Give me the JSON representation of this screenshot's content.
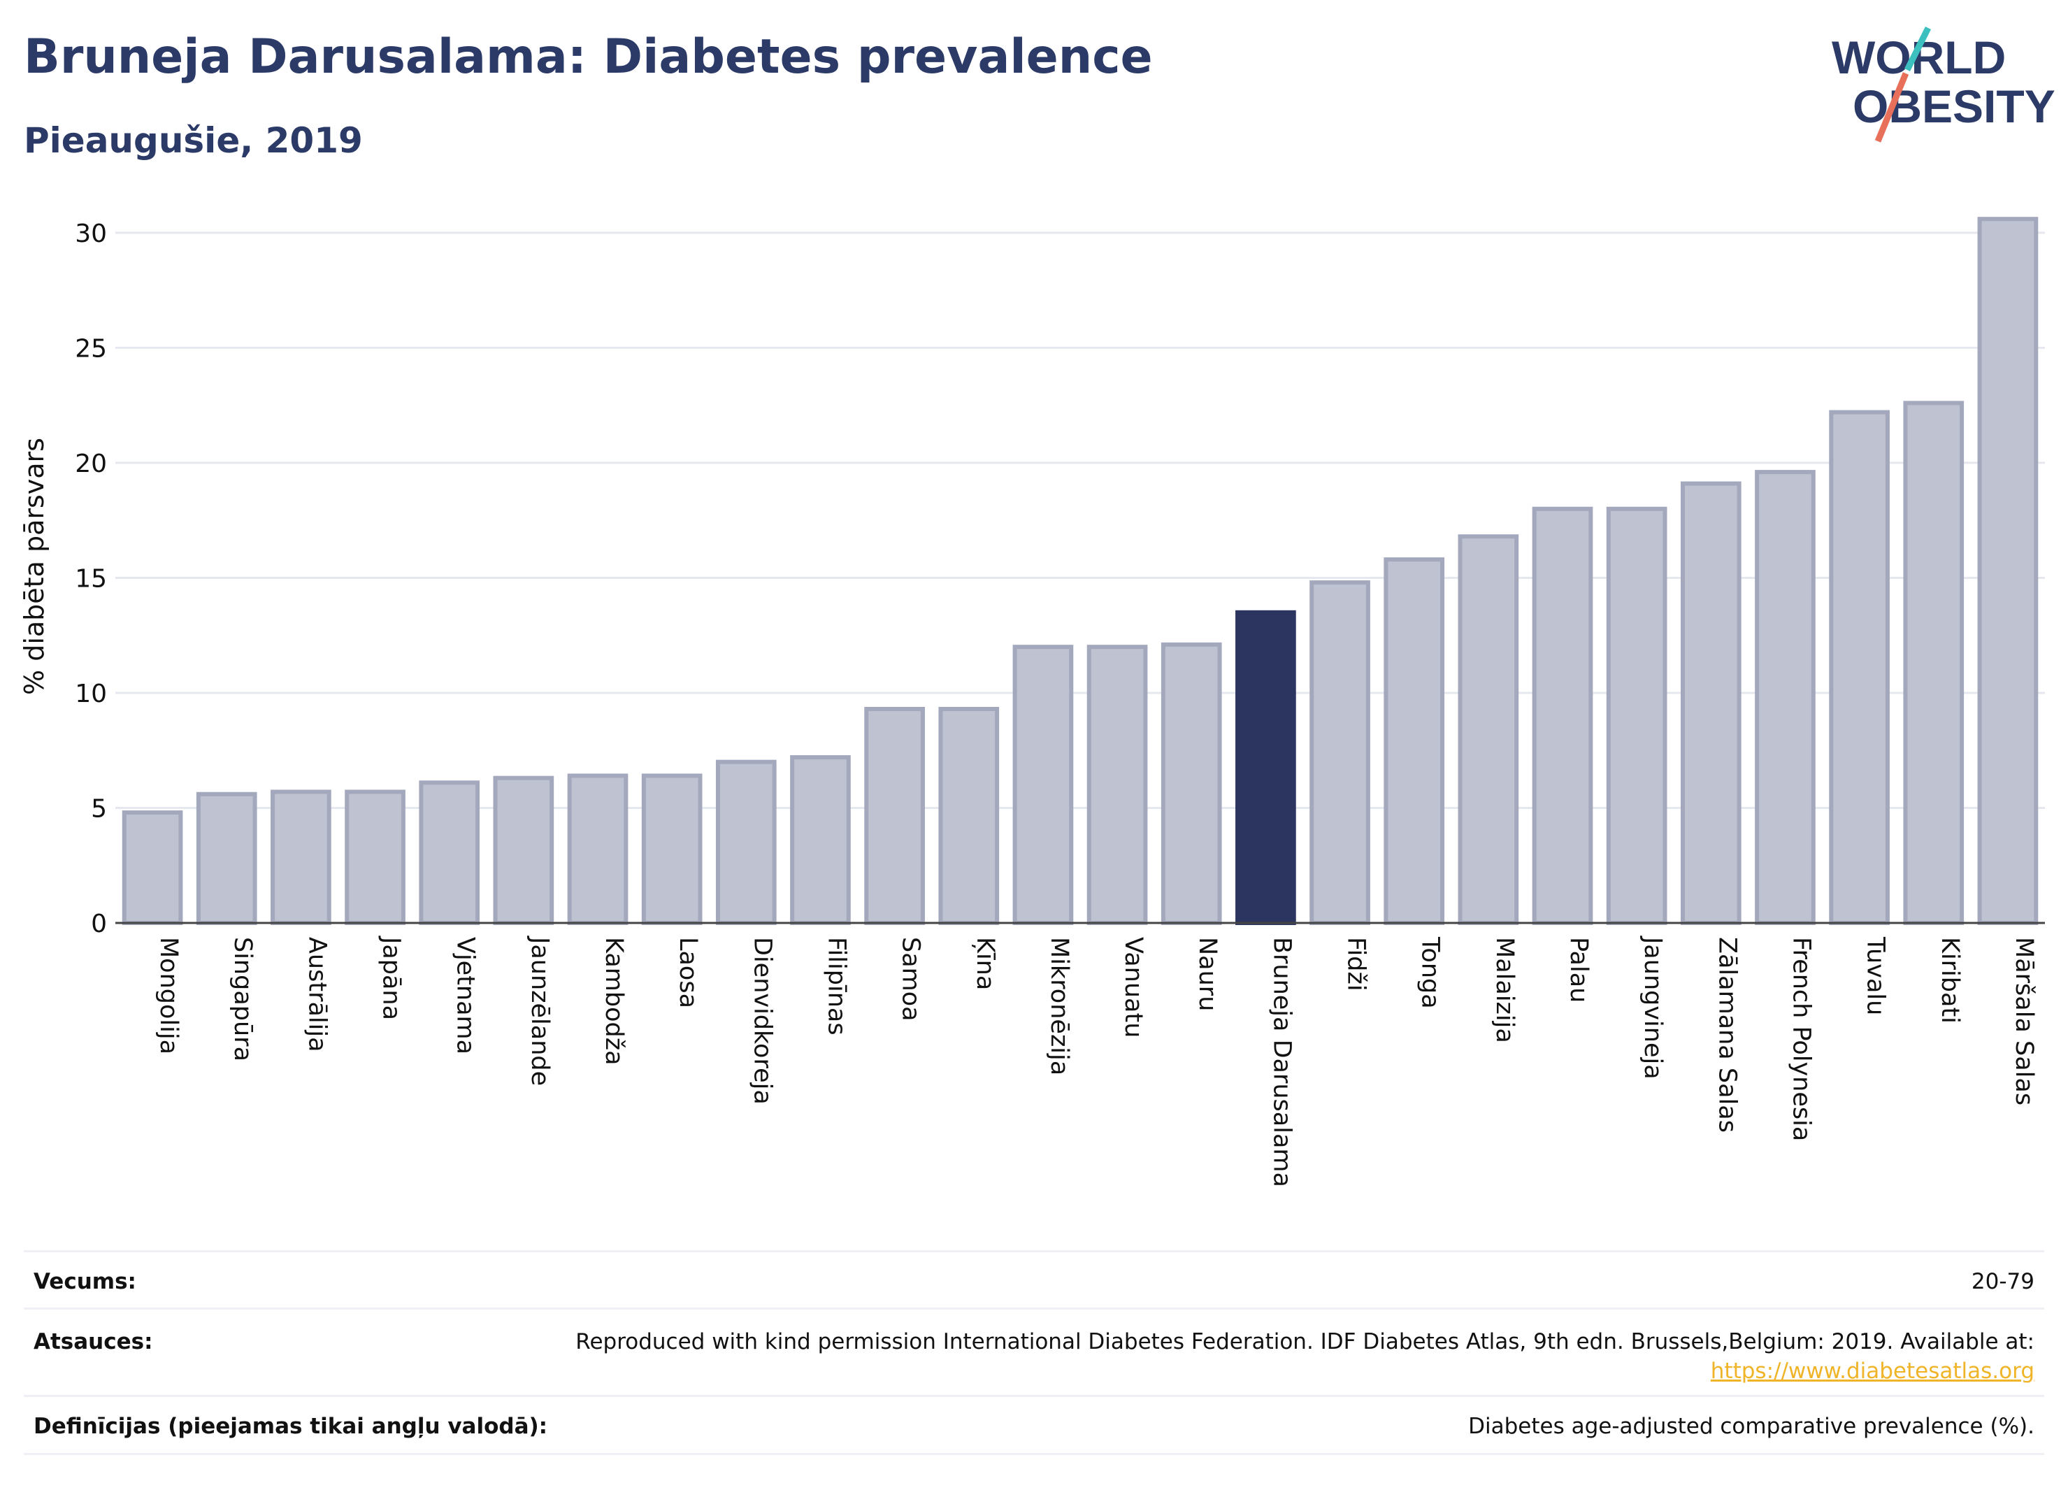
{
  "header": {
    "title": "Bruneja Darusalama: Diabetes prevalence",
    "subtitle": "Pieaugušie, 2019"
  },
  "logo": {
    "line1": "WORLD",
    "line2": "OBESITY",
    "accent_colors": [
      "#3cbfbf",
      "#e8705a"
    ],
    "text_color": "#2b3a67"
  },
  "chart_data": {
    "type": "bar",
    "ylabel": "% diabēta pārsvars",
    "ylim": [
      0,
      31
    ],
    "yticks": [
      0,
      5,
      10,
      15,
      20,
      25,
      30
    ],
    "grid": true,
    "categories": [
      "Mongolija",
      "Singapūra",
      "Austrālija",
      "Japāna",
      "Vjetnama",
      "Jaunzēlande",
      "Kambodža",
      "Laosa",
      "Dienvidkoreja",
      "Filipīnas",
      "Samoa",
      "Ķīna",
      "Mikronēzija",
      "Vanuatu",
      "Nauru",
      "Bruneja Darusalama",
      "Fidži",
      "Tonga",
      "Malaizija",
      "Palau",
      "Jaungvineja",
      "Zālamana Salas",
      "French Polynesia",
      "Tuvalu",
      "Kiribati",
      "Māršala Salas"
    ],
    "values": [
      4.8,
      5.6,
      5.7,
      5.7,
      6.1,
      6.3,
      6.4,
      6.4,
      7.0,
      7.2,
      9.3,
      9.3,
      12.0,
      12.0,
      12.1,
      13.5,
      14.8,
      15.8,
      16.8,
      18.0,
      18.0,
      19.1,
      19.6,
      22.2,
      22.6,
      30.6
    ],
    "highlight": "Bruneja Darusalama",
    "colors": {
      "bar": "#bfc2d0",
      "bar_border": "#a3a8bd",
      "highlight": "#2b3560"
    }
  },
  "meta": {
    "age_label": "Vecums:",
    "age_value": "20-79",
    "sources_label": "Atsauces:",
    "sources_text": "Reproduced with kind permission International Diabetes Federation. IDF Diabetes Atlas, 9th edn. Brussels,Belgium: 2019. Available at:",
    "sources_link": "https://www.diabetesatlas.org",
    "definitions_label": "Definīcijas (pieejamas tikai angļu valodā):",
    "definitions_value": "Diabetes age-adjusted comparative prevalence (%)."
  }
}
